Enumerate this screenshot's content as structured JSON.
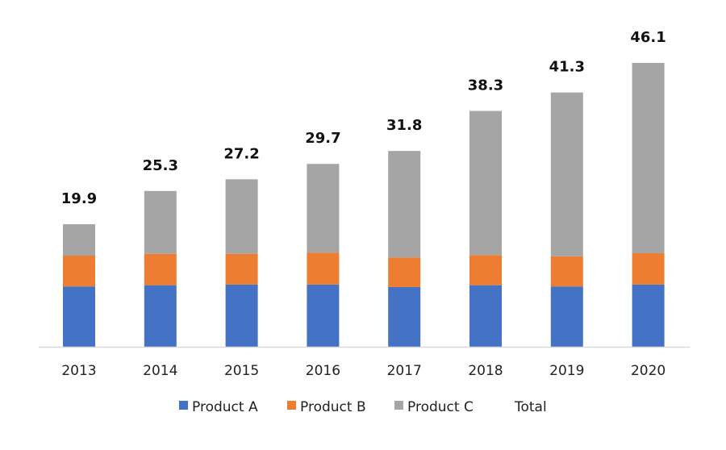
{
  "chart_data": {
    "type": "bar",
    "stacked": true,
    "categories": [
      "2013",
      "2014",
      "2015",
      "2016",
      "2017",
      "2018",
      "2019",
      "2020"
    ],
    "series": [
      {
        "name": "Product A",
        "color": "#4472C4",
        "values": [
          9.8,
          10.0,
          10.1,
          10.1,
          9.7,
          10.0,
          9.8,
          10.1
        ]
      },
      {
        "name": "Product B",
        "color": "#ED7D31",
        "values": [
          5.0,
          5.1,
          5.0,
          5.2,
          4.8,
          4.9,
          4.9,
          5.1
        ]
      },
      {
        "name": "Product C",
        "color": "#A5A5A5",
        "values": [
          5.1,
          10.2,
          12.1,
          14.4,
          17.3,
          23.4,
          26.6,
          30.9
        ]
      }
    ],
    "total": {
      "name": "Total",
      "values": [
        19.9,
        25.3,
        27.2,
        29.7,
        31.8,
        38.3,
        41.3,
        46.1
      ],
      "labels": [
        "19.9",
        "25.3",
        "27.2",
        "29.7",
        "31.8",
        "38.3",
        "41.3",
        "46.1"
      ]
    },
    "ylim": [
      0,
      46.1
    ],
    "grid": false,
    "legend": "bottom"
  }
}
